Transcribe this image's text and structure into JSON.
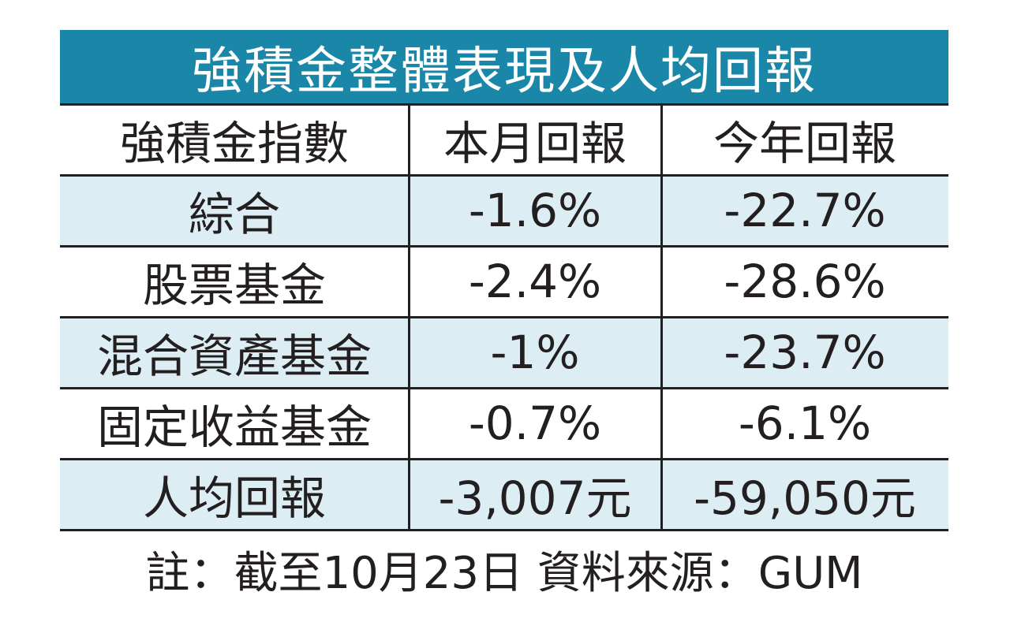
{
  "title": "強積金整體表現及人均回報",
  "table": {
    "header": [
      "強積金指數",
      "本月回報",
      "今年回報"
    ],
    "rows": [
      [
        "綜合",
        "-1.6%",
        "-22.7%"
      ],
      [
        "股票基金",
        "-2.4%",
        "-28.6%"
      ],
      [
        "混合資產基金",
        "-1%",
        "-23.7%"
      ],
      [
        "固定收益基金",
        "-0.7%",
        "-6.1%"
      ],
      [
        "人均回報",
        "-3,007元",
        "-59,050元"
      ]
    ]
  },
  "footnote": "註：截至10月23日 資料來源：GUM"
}
